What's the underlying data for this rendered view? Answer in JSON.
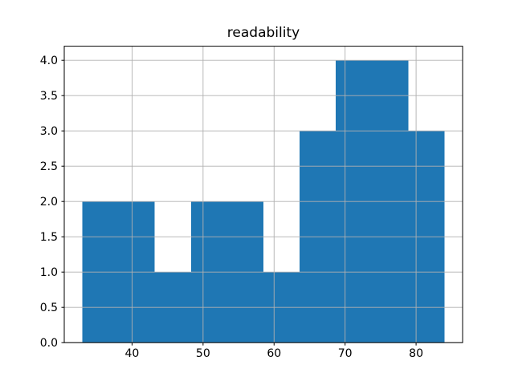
{
  "chart_data": {
    "type": "bar",
    "subtype": "histogram",
    "title": "readability",
    "xlabel": "",
    "ylabel": "",
    "bin_edges": [
      33.0,
      38.1,
      43.2,
      48.3,
      53.4,
      58.5,
      63.6,
      68.7,
      73.8,
      78.9,
      84.0
    ],
    "counts": [
      2,
      2,
      1,
      2,
      2,
      1,
      3,
      4,
      4,
      3
    ],
    "xticks": [
      40,
      50,
      60,
      70,
      80
    ],
    "yticks": [
      0.0,
      0.5,
      1.0,
      1.5,
      2.0,
      2.5,
      3.0,
      3.5,
      4.0
    ],
    "ytick_labels": [
      "0.0",
      "0.5",
      "1.0",
      "1.5",
      "2.0",
      "2.5",
      "3.0",
      "3.5",
      "4.0"
    ],
    "xlim": [
      30.45,
      86.55
    ],
    "ylim": [
      0,
      4.2
    ],
    "grid": true,
    "legend": null,
    "colors": {
      "bar": "#1f77b4",
      "grid": "#b0b0b0",
      "axis": "#000000",
      "background": "#ffffff",
      "text": "#000000"
    }
  }
}
